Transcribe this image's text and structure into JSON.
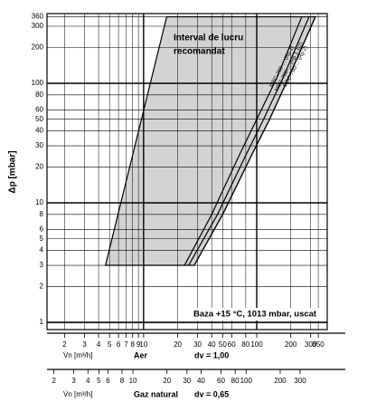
{
  "chart_data": {
    "type": "line",
    "y_label": "Δp [mbar]",
    "xscale": "log",
    "yscale": "log",
    "grid": true,
    "xlim": [
      1.4,
      420
    ],
    "ylim": [
      0.87,
      383
    ],
    "yticks": [
      1,
      2,
      3,
      4,
      5,
      6,
      8,
      10,
      20,
      30,
      40,
      50,
      60,
      80,
      100,
      200,
      300,
      360
    ],
    "xticks": [
      2,
      3,
      4,
      5,
      6,
      7,
      8,
      9,
      10,
      20,
      30,
      40,
      50,
      60,
      80,
      100,
      200,
      300,
      350
    ],
    "x_label": "V̇n [m³/h]",
    "x_medium": "Aer",
    "x_density": "dv = 1,00",
    "x2lim": [
      1.74,
      521
    ],
    "x2ticks": [
      2,
      3,
      4,
      5,
      6,
      8,
      10,
      20,
      30,
      40,
      60,
      80,
      100,
      200,
      300
    ],
    "x2_label": "V̇n [m³/h]",
    "x2_medium": "Gaz natural",
    "x2_density": "dv = 0,65",
    "region": {
      "name": [
        "Interval de lucru",
        "recomandat"
      ],
      "color": "#d3d3d3",
      "x": [
        4.6,
        16,
        330,
        190,
        130,
        90,
        50,
        28
      ],
      "y": [
        3,
        360,
        360,
        110,
        50,
        25,
        8,
        3
      ]
    },
    "note": "Baza   +15 °C, 1013 mbar, uscat",
    "series": [
      {
        "name": "MBC-700-... (Rp 1)",
        "color": "#000000",
        "x": [
          23,
          40,
          70,
          100,
          150,
          250
        ],
        "values": [
          3,
          8,
          25,
          50,
          110,
          360
        ]
      },
      {
        "name": "MBC-700-... (Rp 1 1/2)",
        "color": "#000000",
        "x": [
          25,
          45,
          80,
          115,
          170,
          290
        ],
        "values": [
          3,
          8,
          25,
          50,
          110,
          360
        ]
      },
      {
        "name": "MBC-700-... (Rp 2)",
        "color": "#000000",
        "x": [
          28,
          50,
          90,
          130,
          190,
          330
        ],
        "values": [
          3,
          8,
          25,
          50,
          110,
          360
        ]
      }
    ]
  }
}
